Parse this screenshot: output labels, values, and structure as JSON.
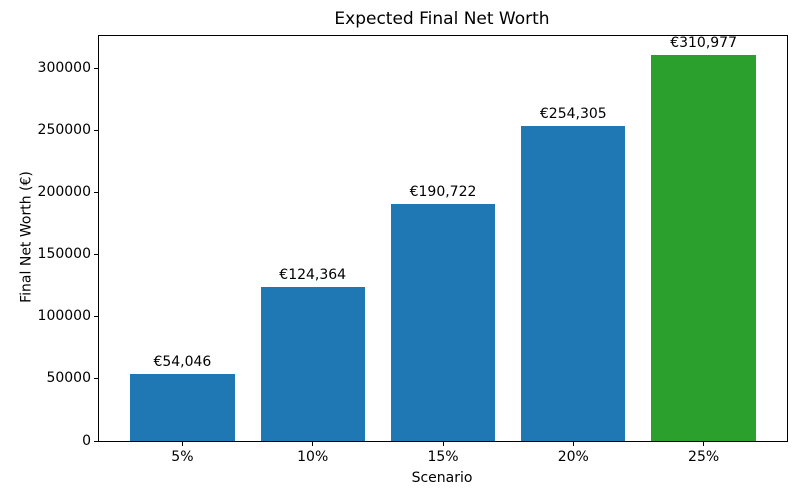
{
  "chart_data": {
    "type": "bar",
    "title": "Expected Final Net Worth",
    "xlabel": "Scenario",
    "ylabel": "Final Net Worth (€)",
    "categories": [
      "5%",
      "10%",
      "15%",
      "20%",
      "25%"
    ],
    "values": [
      54046,
      124364,
      190722,
      254305,
      310977
    ],
    "value_labels": [
      "€54,046",
      "€124,364",
      "€190,722",
      "€254,305",
      "€310,977"
    ],
    "bar_colors": [
      "#1f77b4",
      "#1f77b4",
      "#1f77b4",
      "#1f77b4",
      "#2ca02c"
    ],
    "yticks": [
      0,
      50000,
      100000,
      150000,
      200000,
      250000,
      300000
    ],
    "ylim": [
      0,
      326526
    ],
    "grid": false,
    "legend_position": "none"
  },
  "colors": {
    "bar_blue": "#1f77b4",
    "bar_green": "#2ca02c",
    "axis": "#000000",
    "background": "#ffffff"
  }
}
